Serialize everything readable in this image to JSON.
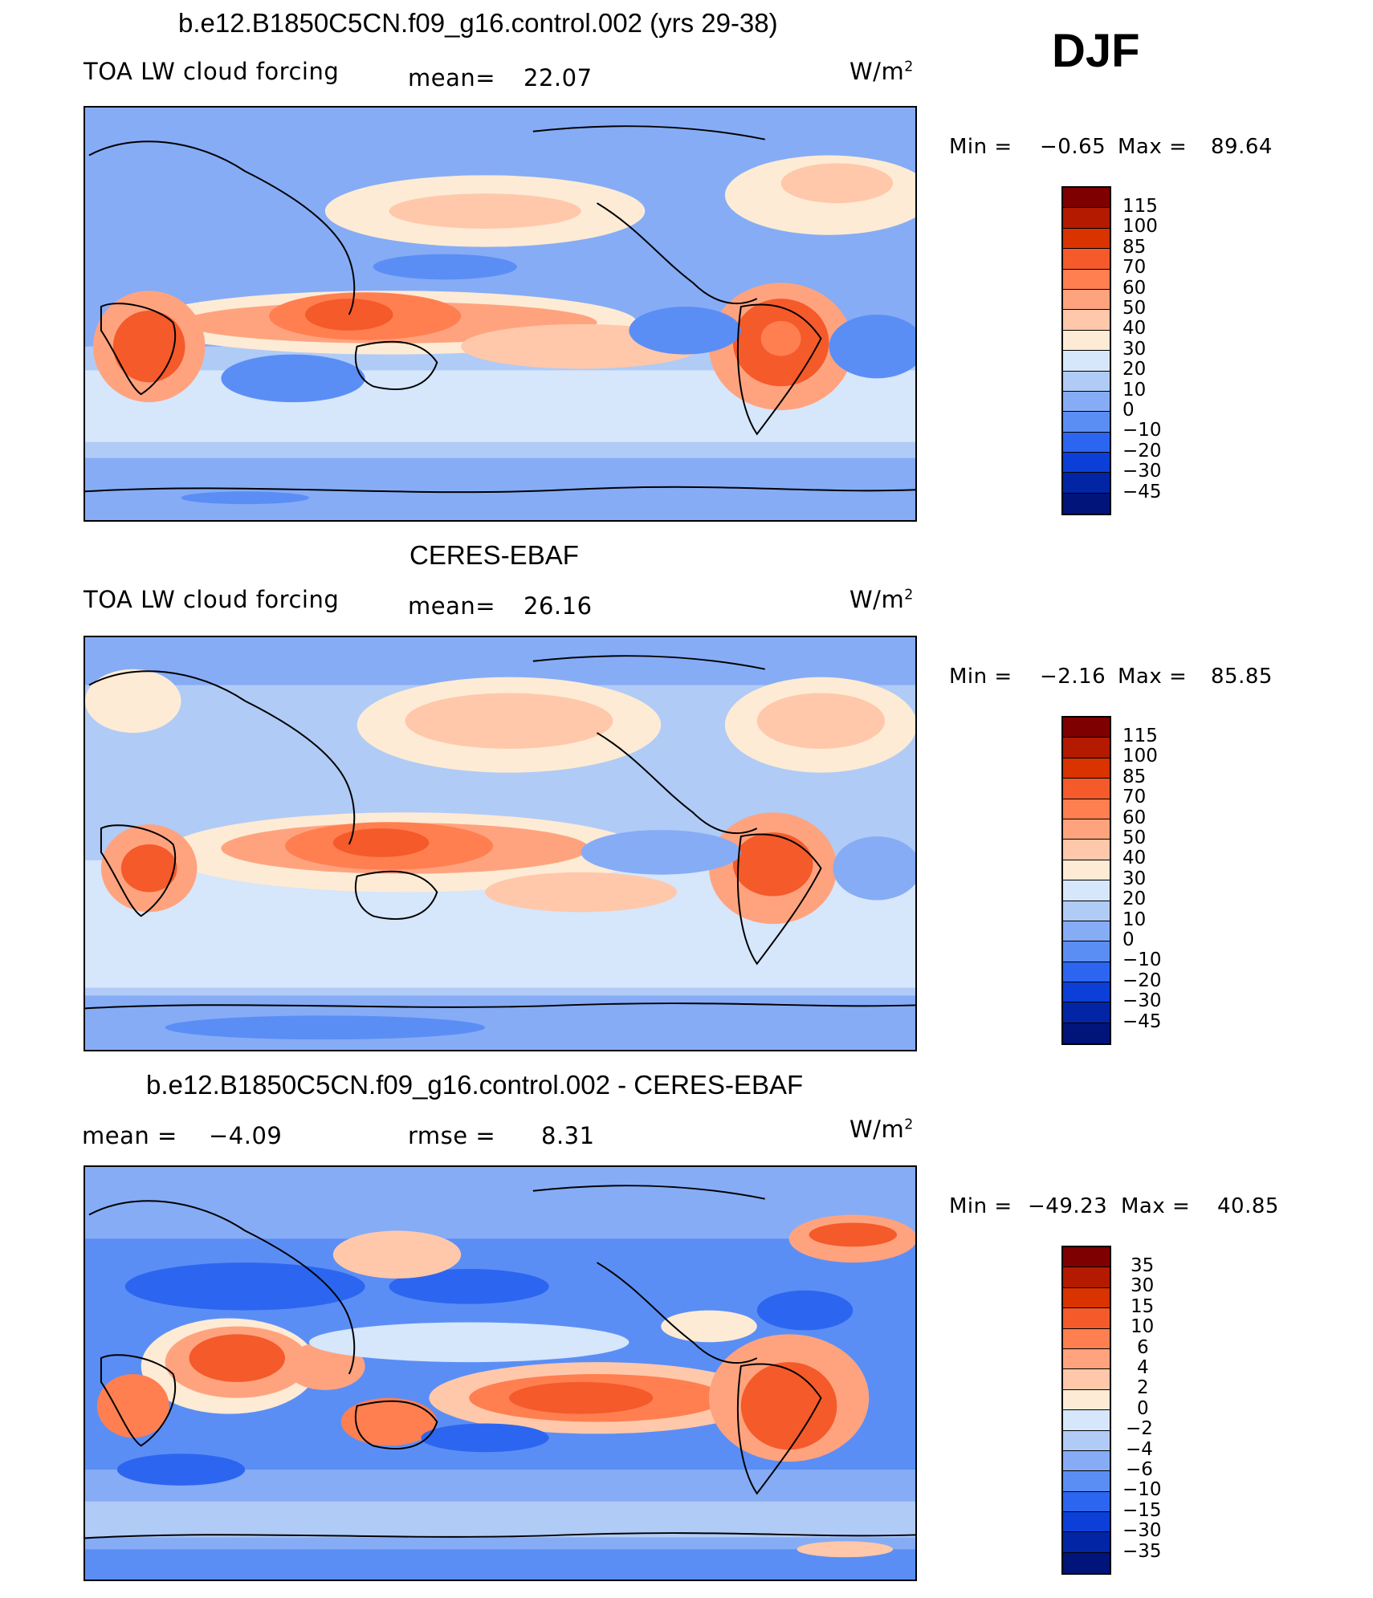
{
  "season_label": "DJF",
  "panels": [
    {
      "title": "b.e12.B1850C5CN.f09_g16.control.002 (yrs 29-38)",
      "variable": "TOA LW cloud forcing",
      "stat1_label": "mean=",
      "stat1_value": "22.07",
      "stat2_label": "",
      "stat2_value": "",
      "units_base": "W/m",
      "units_exp": "2",
      "min_label": "Min =",
      "min_value": "−0.65",
      "max_label": "Max =",
      "max_value": "89.64",
      "colorbar_labels": [
        "115",
        "100",
        "85",
        "70",
        "60",
        "50",
        "40",
        "30",
        "20",
        "10",
        "0",
        "−10",
        "−20",
        "−30",
        "−45"
      ]
    },
    {
      "title": "CERES-EBAF",
      "variable": "TOA LW cloud forcing",
      "stat1_label": "mean=",
      "stat1_value": "26.16",
      "stat2_label": "",
      "stat2_value": "",
      "units_base": "W/m",
      "units_exp": "2",
      "min_label": "Min =",
      "min_value": "−2.16",
      "max_label": "Max =",
      "max_value": "85.85",
      "colorbar_labels": [
        "115",
        "100",
        "85",
        "70",
        "60",
        "50",
        "40",
        "30",
        "20",
        "10",
        "0",
        "−10",
        "−20",
        "−30",
        "−45"
      ]
    },
    {
      "title": "b.e12.B1850C5CN.f09_g16.control.002 - CERES-EBAF",
      "variable": "",
      "stat1_label": "mean =",
      "stat1_value": "−4.09",
      "stat2_label": "rmse =",
      "stat2_value": "8.31",
      "units_base": "W/m",
      "units_exp": "2",
      "min_label": "Min =",
      "min_value": "−49.23",
      "max_label": "Max =",
      "max_value": "40.85",
      "colorbar_labels": [
        "35",
        "30",
        "15",
        "10",
        "6",
        "4",
        "2",
        "0",
        "−2",
        "−4",
        "−6",
        "−10",
        "−15",
        "−30",
        "−35"
      ]
    }
  ],
  "colors": {
    "palette": [
      "#7f0000",
      "#b31a00",
      "#d93300",
      "#f55a2a",
      "#ff7f50",
      "#ffa37f",
      "#ffc8aa",
      "#fdebd5",
      "#d6e6fb",
      "#b0cbf6",
      "#86acf5",
      "#5b8ef5",
      "#2c66f0",
      "#0b3fd8",
      "#0225a6",
      "#00147a"
    ]
  }
}
